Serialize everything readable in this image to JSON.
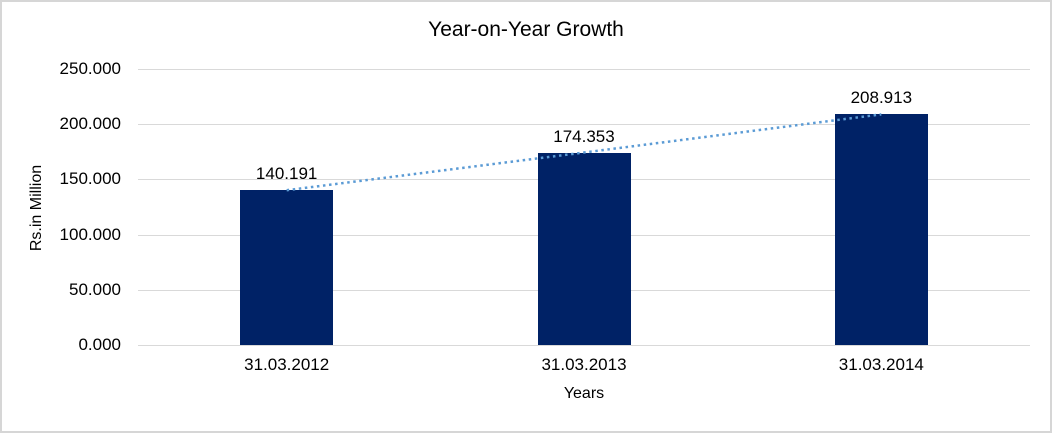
{
  "chart_data": {
    "type": "bar",
    "title": "Year-on-Year Growth",
    "xlabel": "Years",
    "ylabel": "Rs.in Million",
    "categories": [
      "31.03.2012",
      "31.03.2013",
      "31.03.2014"
    ],
    "series": [
      {
        "name": "Year-on-Year Growth",
        "values": [
          140.191,
          174.353,
          208.913
        ]
      }
    ],
    "value_labels": [
      "140.191",
      "174.353",
      "208.913"
    ],
    "ylim": [
      0,
      250
    ],
    "ytick_values": [
      0,
      50,
      100,
      150,
      200,
      250
    ],
    "ytick_labels": [
      "0.000",
      "50.000",
      "100.000",
      "150.000",
      "200.000",
      "250.000"
    ],
    "grid": "horizontal",
    "legend": "none",
    "trendline": {
      "style": "dotted",
      "points": "bar-tops"
    },
    "colors": {
      "bar": "#002266",
      "trendline": "#5b9bd5",
      "gridline": "#d9d9d9",
      "text": "#000000",
      "border": "#d6d6d6",
      "background": "#ffffff"
    }
  }
}
